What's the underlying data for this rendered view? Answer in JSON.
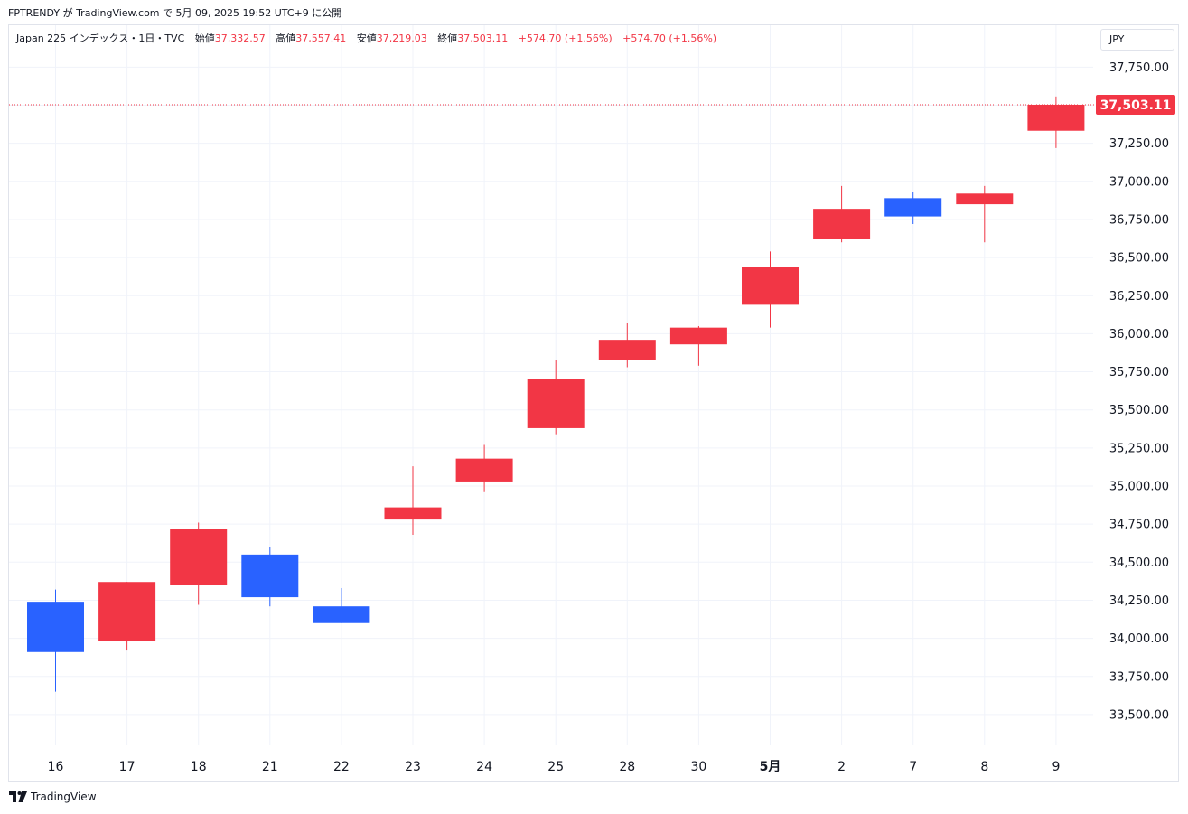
{
  "caption": "FPTRENDY が TradingView.com で 5月 09, 2025 19:52 UTC+9 に公開",
  "legend": {
    "symbol": "Japan 225 インデックス・1日・TVC",
    "open_label": "始値",
    "open": "37,332.57",
    "high_label": "高値",
    "high": "37,557.41",
    "low_label": "安値",
    "low": "37,219.03",
    "close_label": "終値",
    "close": "37,503.11",
    "change1": "+574.70 (+1.56%)",
    "change2": "+574.70 (+1.56%)"
  },
  "currency": "JPY",
  "footer": {
    "brand": "TradingView",
    "logo_icon": "tradingview-logo-icon"
  },
  "colors": {
    "up": "#f23645",
    "down": "#2962ff",
    "grid": "#f0f3fa",
    "last_price_line": "#f23645"
  },
  "chart_data": {
    "type": "candlestick",
    "ylim": [
      33250,
      37950
    ],
    "y_ticks": [
      33500,
      33750,
      34000,
      34250,
      34500,
      34750,
      35000,
      35250,
      35500,
      35750,
      36000,
      36250,
      36500,
      36750,
      37000,
      37250,
      37500,
      37750
    ],
    "y_tick_labels": [
      "33,500.00",
      "33,750.00",
      "34,000.00",
      "34,250.00",
      "34,500.00",
      "34,750.00",
      "35,000.00",
      "35,250.00",
      "35,500.00",
      "35,750.00",
      "36,000.00",
      "36,250.00",
      "36,500.00",
      "36,750.00",
      "37,000.00",
      "37,250.00",
      "37,500.00",
      "37,750.00"
    ],
    "last_price": 37503.11,
    "last_price_label": "37,503.11",
    "candles": [
      {
        "x": "16",
        "open": 34240,
        "high": 34320,
        "low": 33650,
        "close": 33910
      },
      {
        "x": "17",
        "open": 33980,
        "high": 34370,
        "low": 33920,
        "close": 34370
      },
      {
        "x": "18",
        "open": 34350,
        "high": 34760,
        "low": 34220,
        "close": 34720
      },
      {
        "x": "21",
        "open": 34550,
        "high": 34600,
        "low": 34210,
        "close": 34270
      },
      {
        "x": "22",
        "open": 34210,
        "high": 34330,
        "low": 34100,
        "close": 34100
      },
      {
        "x": "23",
        "open": 34780,
        "high": 35130,
        "low": 34680,
        "close": 34860
      },
      {
        "x": "24",
        "open": 35030,
        "high": 35270,
        "low": 34960,
        "close": 35180
      },
      {
        "x": "25",
        "open": 35380,
        "high": 35830,
        "low": 35340,
        "close": 35700
      },
      {
        "x": "28",
        "open": 35830,
        "high": 36070,
        "low": 35780,
        "close": 35960
      },
      {
        "x": "30",
        "open": 35930,
        "high": 36050,
        "low": 35790,
        "close": 36040
      },
      {
        "x": "5月",
        "open": 36190,
        "high": 36540,
        "low": 36040,
        "close": 36440,
        "bold": true
      },
      {
        "x": "2",
        "open": 36620,
        "high": 36970,
        "low": 36600,
        "close": 36820
      },
      {
        "x": "7",
        "open": 36890,
        "high": 36930,
        "low": 36720,
        "close": 36770
      },
      {
        "x": "8",
        "open": 36850,
        "high": 36970,
        "low": 36600,
        "close": 36920
      },
      {
        "x": "9",
        "open": 37332.57,
        "high": 37557.41,
        "low": 37219.03,
        "close": 37503.11
      }
    ]
  }
}
